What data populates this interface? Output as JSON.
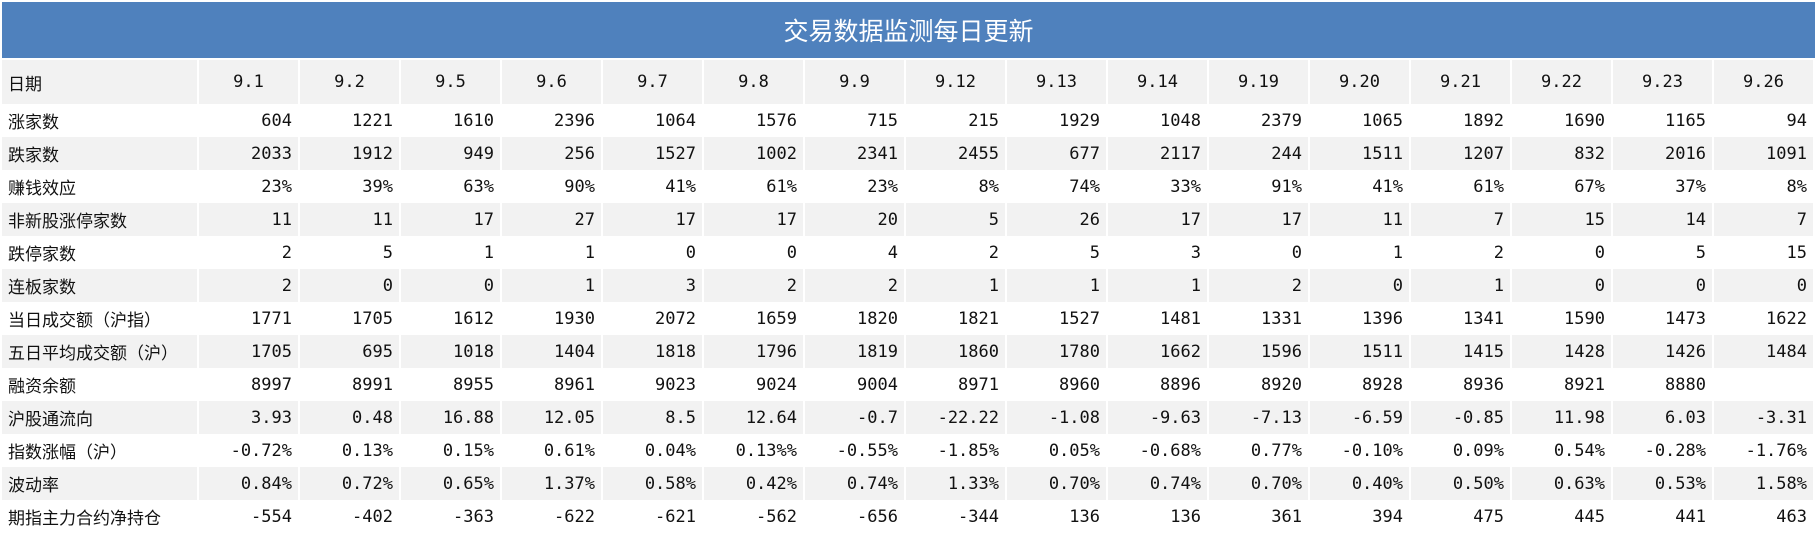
{
  "title": "交易数据监测每日更新",
  "header": {
    "label": "日期",
    "dates": [
      "9.1",
      "9.2",
      "9.5",
      "9.6",
      "9.7",
      "9.8",
      "9.9",
      "9.12",
      "9.13",
      "9.14",
      "9.19",
      "9.20",
      "9.21",
      "9.22",
      "9.23",
      "9.26"
    ]
  },
  "rows": [
    {
      "label": "涨家数",
      "values": [
        "604",
        "1221",
        "1610",
        "2396",
        "1064",
        "1576",
        "715",
        "215",
        "1929",
        "1048",
        "2379",
        "1065",
        "1892",
        "1690",
        "1165",
        "94"
      ]
    },
    {
      "label": "跌家数",
      "values": [
        "2033",
        "1912",
        "949",
        "256",
        "1527",
        "1002",
        "2341",
        "2455",
        "677",
        "2117",
        "244",
        "1511",
        "1207",
        "832",
        "2016",
        "1091"
      ]
    },
    {
      "label": "赚钱效应",
      "values": [
        "23%",
        "39%",
        "63%",
        "90%",
        "41%",
        "61%",
        "23%",
        "8%",
        "74%",
        "33%",
        "91%",
        "41%",
        "61%",
        "67%",
        "37%",
        "8%"
      ]
    },
    {
      "label": "非新股涨停家数",
      "values": [
        "11",
        "11",
        "17",
        "27",
        "17",
        "17",
        "20",
        "5",
        "26",
        "17",
        "17",
        "11",
        "7",
        "15",
        "14",
        "7"
      ]
    },
    {
      "label": "跌停家数",
      "values": [
        "2",
        "5",
        "1",
        "1",
        "0",
        "0",
        "4",
        "2",
        "5",
        "3",
        "0",
        "1",
        "2",
        "0",
        "5",
        "15"
      ]
    },
    {
      "label": "连板家数",
      "values": [
        "2",
        "0",
        "0",
        "1",
        "3",
        "2",
        "2",
        "1",
        "1",
        "1",
        "2",
        "0",
        "1",
        "0",
        "0",
        "0"
      ]
    },
    {
      "label": "当日成交额（沪指）",
      "values": [
        "1771",
        "1705",
        "1612",
        "1930",
        "2072",
        "1659",
        "1820",
        "1821",
        "1527",
        "1481",
        "1331",
        "1396",
        "1341",
        "1590",
        "1473",
        "1622"
      ]
    },
    {
      "label": "五日平均成交额（沪）",
      "values": [
        "1705",
        "695",
        "1018",
        "1404",
        "1818",
        "1796",
        "1819",
        "1860",
        "1780",
        "1662",
        "1596",
        "1511",
        "1415",
        "1428",
        "1426",
        "1484"
      ]
    },
    {
      "label": "融资余额",
      "values": [
        "8997",
        "8991",
        "8955",
        "8961",
        "9023",
        "9024",
        "9004",
        "8971",
        "8960",
        "8896",
        "8920",
        "8928",
        "8936",
        "8921",
        "8880",
        ""
      ]
    },
    {
      "label": "沪股通流向",
      "values": [
        "3.93",
        "0.48",
        "16.88",
        "12.05",
        "8.5",
        "12.64",
        "-0.7",
        "-22.22",
        "-1.08",
        "-9.63",
        "-7.13",
        "-6.59",
        "-0.85",
        "11.98",
        "6.03",
        "-3.31"
      ]
    },
    {
      "label": "指数涨幅（沪）",
      "values": [
        "-0.72%",
        "0.13%",
        "0.15%",
        "0.61%",
        "0.04%",
        "0.13%%",
        "-0.55%",
        "-1.85%",
        "0.05%",
        "-0.68%",
        "0.77%",
        "-0.10%",
        "0.09%",
        "0.54%",
        "-0.28%",
        "-1.76%"
      ]
    },
    {
      "label": "波动率",
      "values": [
        "0.84%",
        "0.72%",
        "0.65%",
        "1.37%",
        "0.58%",
        "0.42%",
        "0.74%",
        "1.33%",
        "0.70%",
        "0.74%",
        "0.70%",
        "0.40%",
        "0.50%",
        "0.63%",
        "0.53%",
        "1.58%"
      ]
    },
    {
      "label": "期指主力合约净持仓",
      "values": [
        "-554",
        "-402",
        "-363",
        "-622",
        "-621",
        "-562",
        "-656",
        "-344",
        "136",
        "136",
        "361",
        "394",
        "475",
        "445",
        "441",
        "463"
      ]
    }
  ]
}
